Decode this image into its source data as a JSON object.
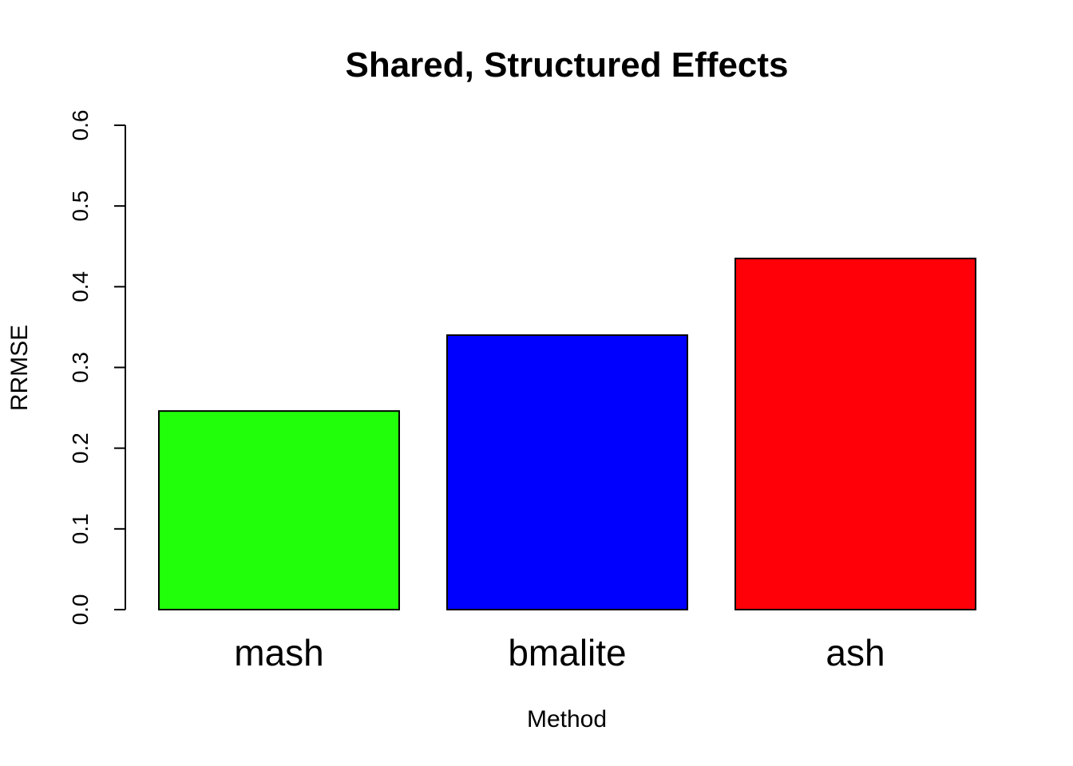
{
  "chart_data": {
    "type": "bar",
    "title": "Shared, Structured Effects",
    "xlabel": "Method",
    "ylabel": "RRMSE",
    "categories": [
      "mash",
      "bmalite",
      "ash"
    ],
    "values": [
      0.246,
      0.34,
      0.435
    ],
    "colors": [
      "#22ff0a",
      "#0000ff",
      "#ff0009"
    ],
    "ylim": [
      0,
      0.6
    ],
    "yticks": [
      "0.0",
      "0.1",
      "0.2",
      "0.3",
      "0.4",
      "0.5",
      "0.6"
    ],
    "grid": false,
    "legend": "none"
  }
}
